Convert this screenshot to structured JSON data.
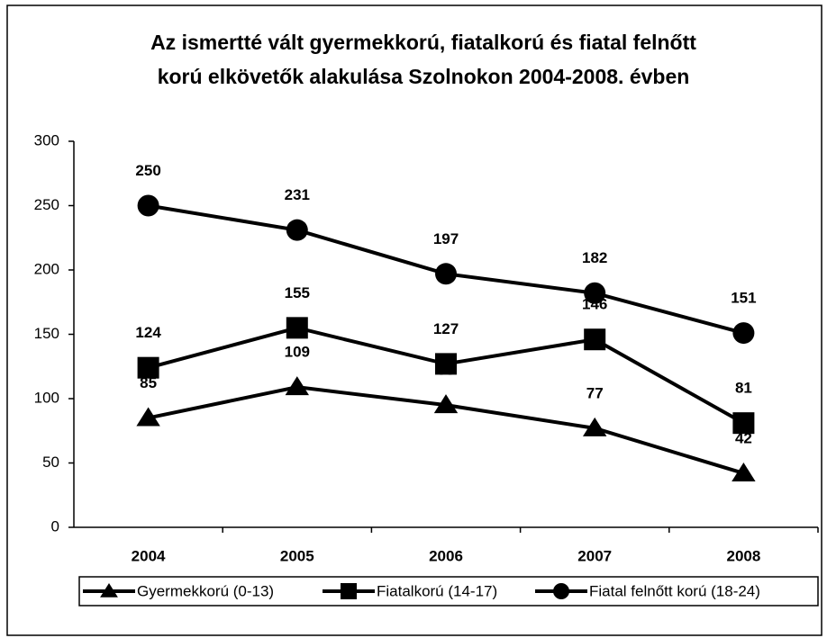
{
  "chart_data": {
    "type": "line",
    "title": [
      "Az ismertté vált gyermekkorú, fiatalkorú és fiatal felnőtt",
      "korú elkövetők alakulása Szolnokon 2004-2008. évben"
    ],
    "categories": [
      "2004",
      "2005",
      "2006",
      "2007",
      "2008"
    ],
    "series": [
      {
        "name": "Gyermekkorú (0-13)",
        "color": "#000000",
        "marker": "triangle",
        "values": [
          85,
          109,
          95,
          77,
          42
        ]
      },
      {
        "name": "Fiatalkorú (14-17)",
        "color": "#000000",
        "marker": "square",
        "values": [
          124,
          155,
          127,
          146,
          81
        ]
      },
      {
        "name": "Fiatal felnőtt korú (18-24)",
        "color": "#000000",
        "marker": "circle",
        "values": [
          250,
          231,
          197,
          182,
          151
        ]
      }
    ],
    "ylim": [
      0,
      300
    ],
    "yticks": [
      0,
      50,
      100,
      150,
      200,
      250,
      300
    ],
    "grid": false,
    "legend": "bottom"
  }
}
